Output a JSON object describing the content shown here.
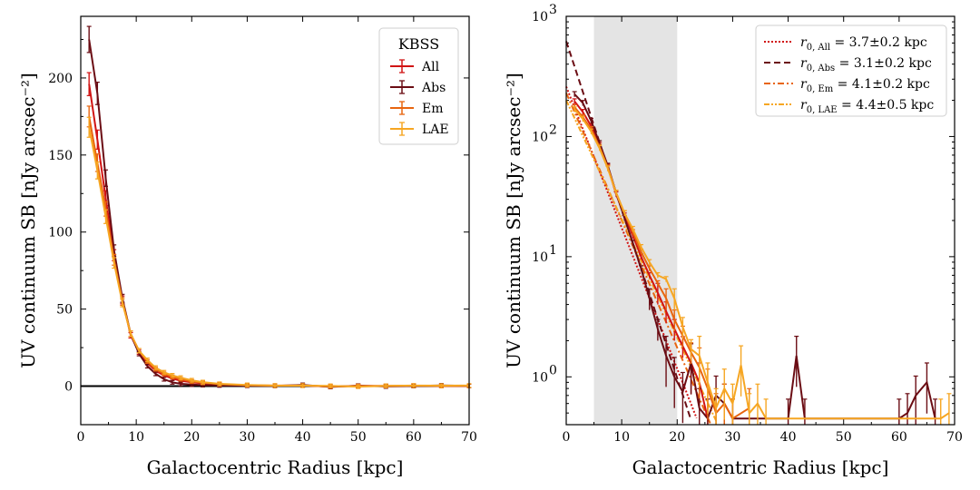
{
  "chart_data": [
    {
      "type": "line",
      "panel": "left",
      "xlabel": "Galactocentric Radius [kpc]",
      "ylabel": "UV continuum SB [nJy arcsec⁻²]",
      "xlim": [
        0,
        70
      ],
      "ylim": [
        -25,
        240
      ],
      "xticks": [
        "0",
        "10",
        "20",
        "30",
        "40",
        "50",
        "60",
        "70"
      ],
      "yticks": [
        "0",
        "50",
        "100",
        "150",
        "200"
      ],
      "zero_line": true,
      "legend": {
        "title": "KBSS",
        "position": "top-right"
      },
      "series": [
        {
          "name": "All",
          "color": "#d11414",
          "x": [
            1.5,
            3,
            4.5,
            6,
            7.5,
            9,
            10.5,
            12,
            13.5,
            15,
            16.5,
            18,
            20,
            22,
            25,
            30,
            35,
            40,
            45,
            50,
            55,
            60,
            65,
            70
          ],
          "y": [
            196,
            160,
            122,
            85,
            56,
            33,
            22,
            15,
            10,
            7,
            5,
            3.5,
            2.5,
            1.8,
            1,
            0.5,
            0.3,
            0.5,
            -0.3,
            0.2,
            0,
            0.3,
            0.2,
            0.1
          ]
        },
        {
          "name": "Abs",
          "color": "#6b0d14",
          "x": [
            1.5,
            3,
            4.5,
            6,
            7.5,
            9,
            10.5,
            12,
            13.5,
            15,
            16.5,
            18,
            20,
            22,
            25,
            30,
            35,
            40,
            45,
            50,
            55,
            60,
            65,
            70
          ],
          "y": [
            225,
            190,
            135,
            88,
            57,
            34,
            21,
            13,
            8,
            4.5,
            2.5,
            1.5,
            1,
            0.7,
            0.5,
            0.3,
            0.2,
            0.8,
            -0.5,
            0.3,
            -0.2,
            0.1,
            0.5,
            0.2
          ]
        },
        {
          "name": "Em",
          "color": "#e8650f",
          "x": [
            1.5,
            3,
            4.5,
            6,
            7.5,
            9,
            10.5,
            12,
            13.5,
            15,
            16.5,
            18,
            20,
            22,
            25,
            30,
            35,
            40,
            45,
            50,
            55,
            60,
            65,
            70
          ],
          "y": [
            175,
            145,
            115,
            82,
            55,
            34,
            23,
            16,
            11,
            8,
            6,
            4.5,
            3,
            2.2,
            1.3,
            0.6,
            0.3,
            0.4,
            -0.2,
            0.1,
            0.2,
            0.3,
            0.1,
            0.2
          ]
        },
        {
          "name": "LAE",
          "color": "#f6a622",
          "x": [
            1.5,
            3,
            4.5,
            6,
            7.5,
            9,
            10.5,
            12,
            13.5,
            15,
            16.5,
            18,
            20,
            22,
            25,
            30,
            35,
            40,
            45,
            50,
            55,
            60,
            65,
            70
          ],
          "y": [
            168,
            140,
            110,
            80,
            54,
            34,
            23,
            17,
            12,
            9,
            7,
            5.5,
            3.8,
            2.6,
            1.5,
            0.8,
            0.4,
            0.3,
            0.2,
            -0.3,
            0.2,
            0.4,
            0.3,
            0.4
          ]
        }
      ]
    },
    {
      "type": "line",
      "panel": "right",
      "yscale": "log",
      "xlabel": "Galactocentric Radius [kpc]",
      "ylabel": "UV continuum SB [nJy arcsec⁻²]",
      "xlim": [
        0,
        70
      ],
      "ylim": [
        0.4,
        1000
      ],
      "xticks": [
        "0",
        "10",
        "20",
        "30",
        "40",
        "50",
        "60",
        "70"
      ],
      "yticks": [
        {
          "base": "10",
          "exp": "0",
          "value": 1
        },
        {
          "base": "10",
          "exp": "1",
          "value": 10
        },
        {
          "base": "10",
          "exp": "2",
          "value": 100
        },
        {
          "base": "10",
          "exp": "3",
          "value": 1000
        }
      ],
      "shaded_region": [
        5,
        20
      ],
      "legend": {
        "position": "top-right"
      },
      "fits": [
        {
          "name": "All",
          "sub": "0, All",
          "label": " = 3.7±0.2 kpc",
          "r0": 3.7,
          "A": 260,
          "color": "#d11414",
          "dash": "2,2"
        },
        {
          "name": "Abs",
          "sub": "0, Abs",
          "label": " = 3.1±0.2 kpc",
          "r0": 3.1,
          "A": 620,
          "color": "#6b0d14",
          "dash": "7,4"
        },
        {
          "name": "Em",
          "sub": "0, Em",
          "label": " = 4.1±0.2 kpc",
          "r0": 4.1,
          "A": 230,
          "color": "#e8650f",
          "dash": "7,3,2,3"
        },
        {
          "name": "LAE",
          "sub": "0, LAE",
          "label": " = 4.4±0.5 kpc",
          "r0": 4.4,
          "A": 200,
          "color": "#f6a622",
          "dash": "6,2,2,2,2,2"
        }
      ],
      "series": [
        {
          "name": "All",
          "color": "#d11414",
          "x": [
            1.5,
            3,
            4.5,
            6,
            7.5,
            9,
            10.5,
            12,
            13.5,
            15,
            16.5,
            18,
            19.5,
            21,
            22.5,
            24,
            25.5
          ],
          "y": [
            196,
            160,
            122,
            85,
            56,
            33,
            22,
            15,
            10,
            7,
            5,
            3.5,
            2.5,
            1.8,
            1.3,
            0.9,
            0.45
          ]
        },
        {
          "name": "Abs",
          "color": "#6b0d14",
          "x": [
            1.5,
            3,
            4.5,
            6,
            7.5,
            9,
            10.5,
            12,
            13.5,
            15,
            16.5,
            18,
            19.5,
            21,
            22.5,
            24,
            25.5,
            27,
            28.5,
            30,
            40,
            41.5,
            43,
            60,
            61.5,
            63,
            65,
            66.5
          ],
          "y": [
            225,
            190,
            135,
            88,
            57,
            34,
            21,
            13,
            8,
            4.5,
            2.5,
            1.5,
            1.0,
            0.75,
            1.3,
            0.55,
            0.45,
            0.7,
            0.6,
            0.45,
            0.45,
            1.5,
            0.45,
            0.45,
            0.5,
            0.7,
            0.9,
            0.45
          ]
        },
        {
          "name": "Em",
          "color": "#e8650f",
          "x": [
            1.5,
            3,
            4.5,
            6,
            7.5,
            9,
            10.5,
            12,
            13.5,
            15,
            16.5,
            18,
            19.5,
            21,
            22.5,
            24,
            25.5,
            27,
            28.5,
            30,
            33
          ],
          "y": [
            175,
            145,
            115,
            82,
            55,
            34,
            23,
            16,
            11,
            8,
            6,
            4.5,
            3.0,
            2.2,
            1.6,
            1.2,
            0.8,
            0.5,
            0.6,
            0.45,
            0.55
          ]
        },
        {
          "name": "LAE",
          "color": "#f6a622",
          "x": [
            1.5,
            3,
            4.5,
            6,
            7.5,
            9,
            10.5,
            12,
            13.5,
            15,
            16.5,
            18,
            19.5,
            21,
            22.5,
            24,
            25.5,
            27,
            28.5,
            30,
            31.5,
            33,
            34.5,
            36,
            67.5,
            69
          ],
          "y": [
            168,
            140,
            110,
            80,
            54,
            34,
            23,
            17,
            12,
            9,
            7,
            6.5,
            4.5,
            2.6,
            1.7,
            1.5,
            0.9,
            0.55,
            0.8,
            0.6,
            1.25,
            0.5,
            0.6,
            0.45,
            0.45,
            0.5
          ]
        }
      ]
    }
  ]
}
